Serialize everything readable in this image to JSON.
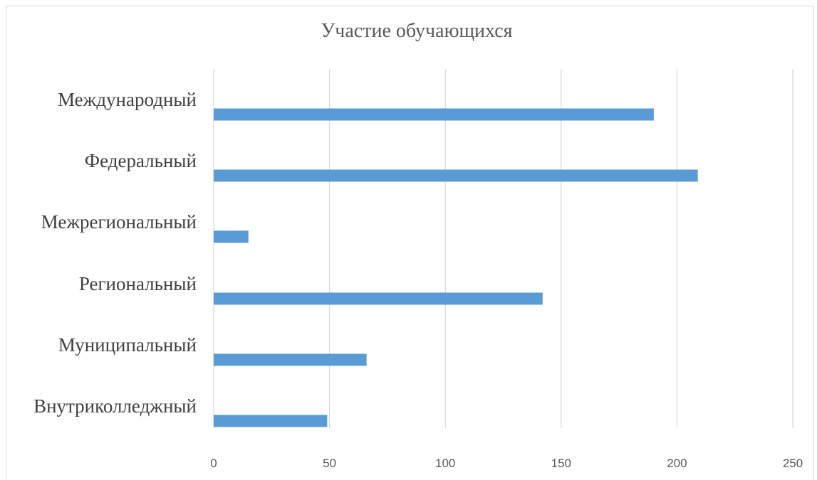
{
  "chart_data": {
    "type": "bar",
    "orientation": "horizontal",
    "title": "Участие обучающихся",
    "categories": [
      "Международный",
      "Федеральный",
      "Межрегиональный",
      "Региональный",
      "Муниципальный",
      "Внутриколледжный"
    ],
    "values": [
      190,
      209,
      15,
      142,
      66,
      49
    ],
    "xlim": [
      0,
      250
    ],
    "xticks": [
      0,
      50,
      100,
      150,
      200,
      250
    ],
    "grid": true,
    "legend": "none",
    "colors": {
      "bar": "#5b9bd5",
      "grid": "#d9d9d9"
    }
  }
}
